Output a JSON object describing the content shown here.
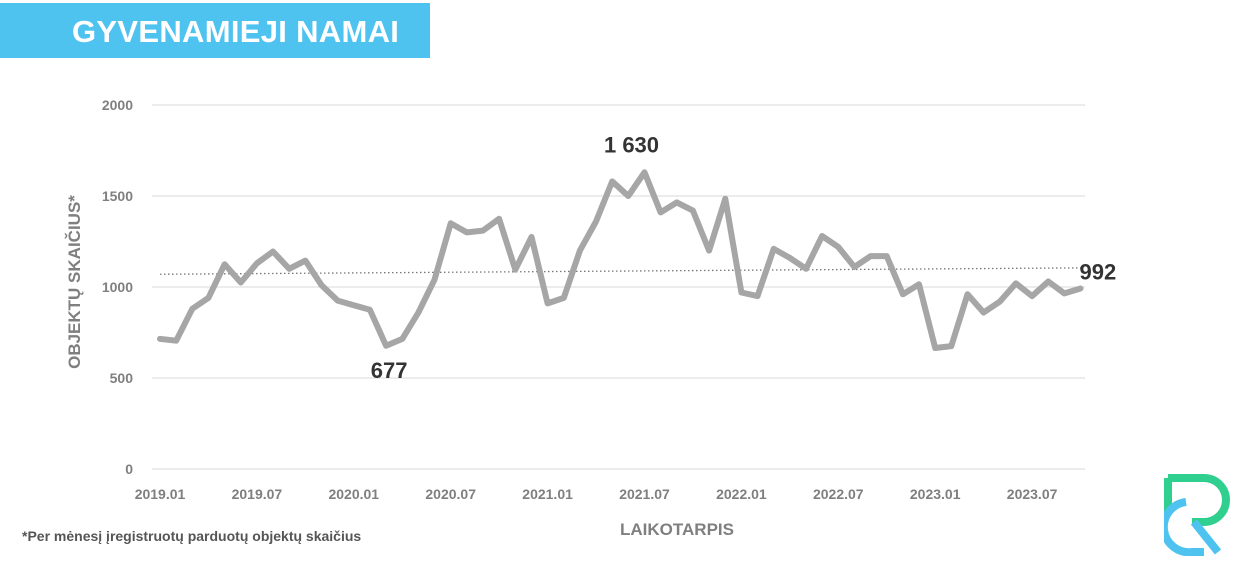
{
  "header": {
    "title": "GYVENAMIEJI NAMAI"
  },
  "footnote": "*Per mėnesį įregistruotų parduotų objektų skaičius",
  "logo": {
    "icon": "rc-logo-icon",
    "colors": {
      "green": "#2fcf8f",
      "blue": "#4fc3f0"
    }
  },
  "chart_data": {
    "type": "line",
    "title": "",
    "xlabel": "LAIKOTARPIS",
    "ylabel": "OBJEKTŲ SKAIČIUS*",
    "ylim": [
      0,
      2000
    ],
    "yticks": [
      "0",
      "500",
      "1000",
      "1500",
      "2000"
    ],
    "xtick_labels": [
      "2019.01",
      "2019.07",
      "2020.01",
      "2020.07",
      "2021.01",
      "2021.07",
      "2022.01",
      "2022.07",
      "2023.01",
      "2023.07"
    ],
    "grid": true,
    "colors": {
      "line": "#a6a6a6",
      "trend": "#777777",
      "grid": "#d9d9d9",
      "label": "#333333",
      "axis_text": "#7f7f7f"
    },
    "x": [
      "2019.01",
      "2019.02",
      "2019.03",
      "2019.04",
      "2019.05",
      "2019.06",
      "2019.07",
      "2019.08",
      "2019.09",
      "2019.10",
      "2019.11",
      "2019.12",
      "2020.01",
      "2020.02",
      "2020.03",
      "2020.04",
      "2020.05",
      "2020.06",
      "2020.07",
      "2020.08",
      "2020.09",
      "2020.10",
      "2020.11",
      "2020.12",
      "2021.01",
      "2021.02",
      "2021.03",
      "2021.04",
      "2021.05",
      "2021.06",
      "2021.07",
      "2021.08",
      "2021.09",
      "2021.10",
      "2021.11",
      "2021.12",
      "2022.01",
      "2022.02",
      "2022.03",
      "2022.04",
      "2022.05",
      "2022.06",
      "2022.07",
      "2022.08",
      "2022.09",
      "2022.10",
      "2022.11",
      "2022.12",
      "2023.01",
      "2023.02",
      "2023.03",
      "2023.04",
      "2023.05",
      "2023.06",
      "2023.07",
      "2023.08",
      "2023.09",
      "2023.10"
    ],
    "series": [
      {
        "name": "",
        "values": [
          715,
          705,
          880,
          940,
          1125,
          1025,
          1130,
          1195,
          1100,
          1145,
          1010,
          925,
          900,
          875,
          677,
          715,
          860,
          1040,
          1350,
          1300,
          1310,
          1375,
          1095,
          1275,
          910,
          940,
          1200,
          1360,
          1580,
          1500,
          1630,
          1410,
          1465,
          1420,
          1200,
          1485,
          970,
          950,
          1210,
          1160,
          1100,
          1280,
          1220,
          1110,
          1170,
          1170,
          960,
          1015,
          665,
          675,
          960,
          860,
          920,
          1020,
          950,
          1030,
          965,
          992
        ]
      }
    ],
    "trendline": {
      "style": "dotted",
      "start": 1070,
      "end": 1105
    },
    "annotations": [
      {
        "label": "677",
        "x": "2020.03",
        "value": 677,
        "position": "below"
      },
      {
        "label": "1 630",
        "x": "2021.07",
        "value": 1630,
        "position": "above"
      },
      {
        "label": "992",
        "x": "2023.10",
        "value": 992,
        "position": "above-right"
      }
    ]
  }
}
